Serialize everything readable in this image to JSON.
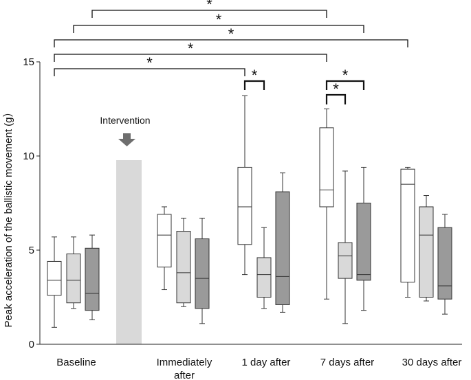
{
  "chart_data": {
    "type": "boxplot",
    "ylabel": "Peak acceleration of the ballistic movement (g）",
    "ylim": [
      0,
      15
    ],
    "yticks": [
      0,
      5,
      10,
      15
    ],
    "categories": [
      "Baseline",
      "Immediately after",
      "1 day after",
      "7 days after",
      "30 days after"
    ],
    "intervention_label": "Intervention",
    "series_colors": [
      "#ffffff",
      "#d9d9d9",
      "#9a9a9a"
    ],
    "groups": [
      {
        "category": "Baseline",
        "boxes": [
          {
            "min": 0.9,
            "q1": 2.6,
            "median": 3.4,
            "q3": 4.4,
            "max": 5.7
          },
          {
            "min": 1.9,
            "q1": 2.2,
            "median": 3.4,
            "q3": 4.8,
            "max": 5.7
          },
          {
            "min": 1.3,
            "q1": 1.8,
            "median": 2.7,
            "q3": 5.1,
            "max": 5.8
          }
        ]
      },
      {
        "category": "Immediately after",
        "boxes": [
          {
            "min": 2.9,
            "q1": 4.1,
            "median": 5.8,
            "q3": 6.9,
            "max": 7.3
          },
          {
            "min": 2.0,
            "q1": 2.2,
            "median": 3.8,
            "q3": 6.0,
            "max": 6.7
          },
          {
            "min": 1.1,
            "q1": 1.9,
            "median": 3.5,
            "q3": 5.6,
            "max": 6.7
          }
        ]
      },
      {
        "category": "1 day after",
        "boxes": [
          {
            "min": 3.7,
            "q1": 5.3,
            "median": 7.3,
            "q3": 9.4,
            "max": 13.2
          },
          {
            "min": 1.9,
            "q1": 2.5,
            "median": 3.7,
            "q3": 4.6,
            "max": 6.2
          },
          {
            "min": 1.7,
            "q1": 2.1,
            "median": 3.6,
            "q3": 8.1,
            "max": 9.1
          }
        ]
      },
      {
        "category": "7 days after",
        "boxes": [
          {
            "min": 2.4,
            "q1": 7.3,
            "median": 8.2,
            "q3": 11.5,
            "max": 12.5
          },
          {
            "min": 1.1,
            "q1": 3.5,
            "median": 4.7,
            "q3": 5.4,
            "max": 9.2
          },
          {
            "min": 1.8,
            "q1": 3.4,
            "median": 3.7,
            "q3": 7.5,
            "max": 9.4
          }
        ]
      },
      {
        "category": "30 days after",
        "boxes": [
          {
            "min": 2.5,
            "q1": 3.3,
            "median": 8.5,
            "q3": 9.3,
            "max": 9.4
          },
          {
            "min": 2.3,
            "q1": 2.5,
            "median": 5.8,
            "q3": 7.3,
            "max": 7.9
          },
          {
            "min": 1.6,
            "q1": 2.4,
            "median": 3.1,
            "q3": 6.2,
            "max": 6.9
          }
        ]
      }
    ],
    "significance_marker": "*",
    "significance_brackets": [
      {
        "from_group": 0,
        "from_box": 0,
        "to_group": 2,
        "to_box": 0,
        "label": "*"
      },
      {
        "from_group": 0,
        "from_box": 0,
        "to_group": 3,
        "to_box": 0,
        "label": "*"
      },
      {
        "from_group": 0,
        "from_box": 0,
        "to_group": 4,
        "to_box": 0,
        "label": "*"
      },
      {
        "from_group": 0,
        "from_box": 1,
        "to_group": 3,
        "to_box": 2,
        "label": "*"
      },
      {
        "from_group": 0,
        "from_box": 2,
        "to_group": 3,
        "to_box": 0,
        "label": "*"
      },
      {
        "from_group": 2,
        "from_box": 0,
        "to_group": 2,
        "to_box": 1,
        "label": "*"
      },
      {
        "from_group": 3,
        "from_box": 0,
        "to_group": 3,
        "to_box": 1,
        "label": "*"
      },
      {
        "from_group": 3,
        "from_box": 0,
        "to_group": 3,
        "to_box": 2,
        "label": "*"
      }
    ]
  }
}
